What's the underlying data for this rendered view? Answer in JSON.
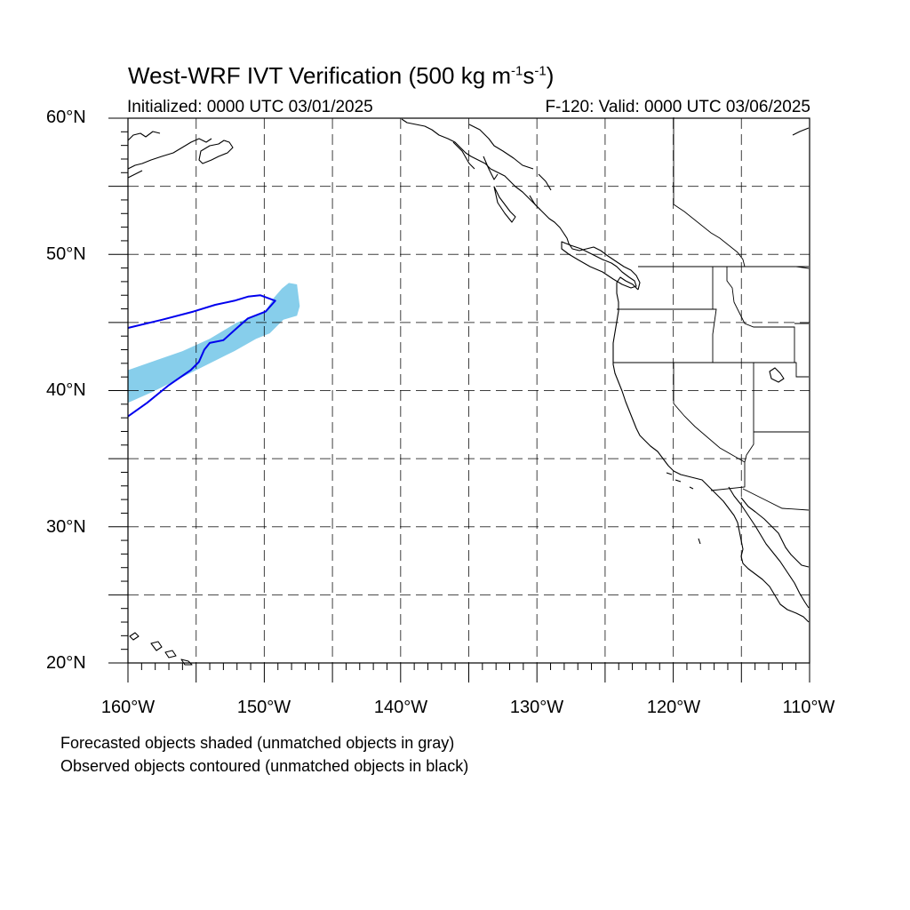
{
  "title": {
    "prefix": "West-WRF IVT Verification (500 kg m",
    "sup1": "-1",
    "mid": "s",
    "sup2": "-1",
    "suffix": ")"
  },
  "initialized": "Initialized: 0000 UTC 03/01/2025",
  "valid": "F-120: Valid: 0000 UTC 03/06/2025",
  "lat_labels": [
    "60°N",
    "50°N",
    "40°N",
    "30°N",
    "20°N"
  ],
  "lon_labels": [
    "160°W",
    "150°W",
    "140°W",
    "130°W",
    "120°W",
    "110°W"
  ],
  "notes": [
    "Forecasted objects shaded (unmatched objects in gray)",
    "Observed objects contoured (unmatched objects in black)"
  ],
  "colors": {
    "forecast_fill": "#87ceeb",
    "observed_contour": "#0000ee",
    "coastline": "#000000",
    "grid": "#000000"
  },
  "map": {
    "lon_range": [
      -160,
      -110
    ],
    "lat_range": [
      20,
      60
    ],
    "grid_lons": [
      -155,
      -150,
      -145,
      -140,
      -135,
      -130,
      -125,
      -120,
      -115
    ],
    "grid_lats": [
      25,
      30,
      35,
      40,
      45,
      50,
      55
    ],
    "forecast_object": [
      [
        -160,
        41.5
      ],
      [
        -158,
        42.2
      ],
      [
        -156,
        42.9
      ],
      [
        -154,
        43.8
      ],
      [
        -152,
        45.0
      ],
      [
        -150,
        45.7
      ],
      [
        -149.3,
        46.8
      ],
      [
        -148.7,
        47.5
      ],
      [
        -148.2,
        47.9
      ],
      [
        -147.6,
        47.8
      ],
      [
        -147.4,
        46.2
      ],
      [
        -147.6,
        45.5
      ],
      [
        -148.6,
        45.2
      ],
      [
        -149.6,
        44.2
      ],
      [
        -150.6,
        43.8
      ],
      [
        -152.2,
        42.9
      ],
      [
        -154.2,
        41.9
      ],
      [
        -156.2,
        40.9
      ],
      [
        -158.2,
        39.9
      ],
      [
        -160,
        39.1
      ]
    ],
    "observed_contour": [
      [
        -160,
        38.1
      ],
      [
        -158.6,
        39.1
      ],
      [
        -157,
        40.4
      ],
      [
        -155.4,
        41.5
      ],
      [
        -154.8,
        42.1
      ],
      [
        -154.4,
        43.0
      ],
      [
        -154,
        43.5
      ],
      [
        -153,
        43.7
      ],
      [
        -152,
        44.6
      ],
      [
        -151.2,
        45.3
      ],
      [
        -149.9,
        45.8
      ],
      [
        -149.2,
        46.6
      ],
      [
        -150.3,
        47.0
      ],
      [
        -151.2,
        46.9
      ],
      [
        -152.2,
        46.6
      ],
      [
        -153.6,
        46.3
      ],
      [
        -155.2,
        45.8
      ],
      [
        -157.5,
        45.2
      ],
      [
        -160,
        44.6
      ]
    ]
  }
}
